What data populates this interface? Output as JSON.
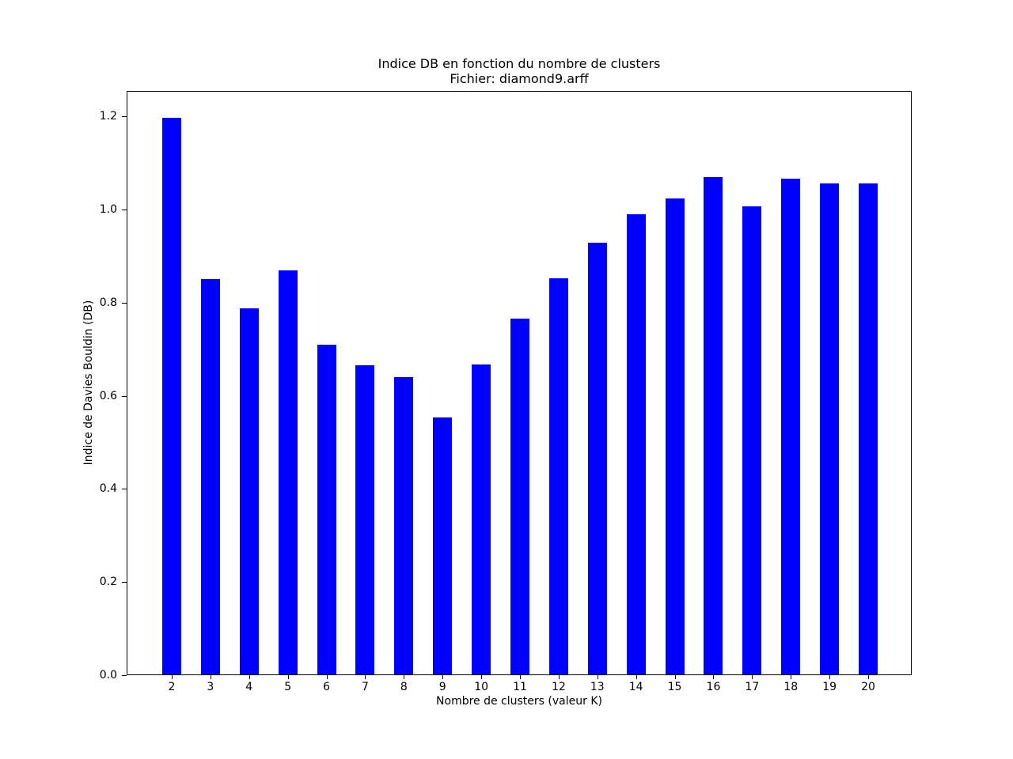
{
  "chart_data": {
    "type": "bar",
    "title": "Indice DB en fonction du nombre de clusters",
    "subtitle": "Fichier: diamond9.arff",
    "xlabel": "Nombre de clusters (valeur K)",
    "ylabel": "Indice de Davies Bouldin (DB)",
    "categories": [
      "2",
      "3",
      "4",
      "5",
      "6",
      "7",
      "8",
      "9",
      "10",
      "11",
      "12",
      "13",
      "14",
      "15",
      "16",
      "17",
      "18",
      "19",
      "20"
    ],
    "values": [
      1.195,
      0.849,
      0.786,
      0.867,
      0.708,
      0.664,
      0.638,
      0.552,
      0.665,
      0.764,
      0.85,
      0.928,
      0.989,
      1.023,
      1.068,
      1.005,
      1.064,
      1.054,
      1.054
    ],
    "ylim": [
      0,
      1.255
    ],
    "yticks": [
      {
        "value": 0.0,
        "label": "0.0"
      },
      {
        "value": 0.2,
        "label": "0.2"
      },
      {
        "value": 0.4,
        "label": "0.4"
      },
      {
        "value": 0.6,
        "label": "0.6"
      },
      {
        "value": 0.8,
        "label": "0.8"
      },
      {
        "value": 1.0,
        "label": "1.0"
      },
      {
        "value": 1.2,
        "label": "1.2"
      }
    ],
    "grid": false,
    "legend": "none",
    "bar_color": "#0000ff",
    "background_color": "#ffffff",
    "axis_color": "#000000",
    "text_color": "#000000"
  }
}
